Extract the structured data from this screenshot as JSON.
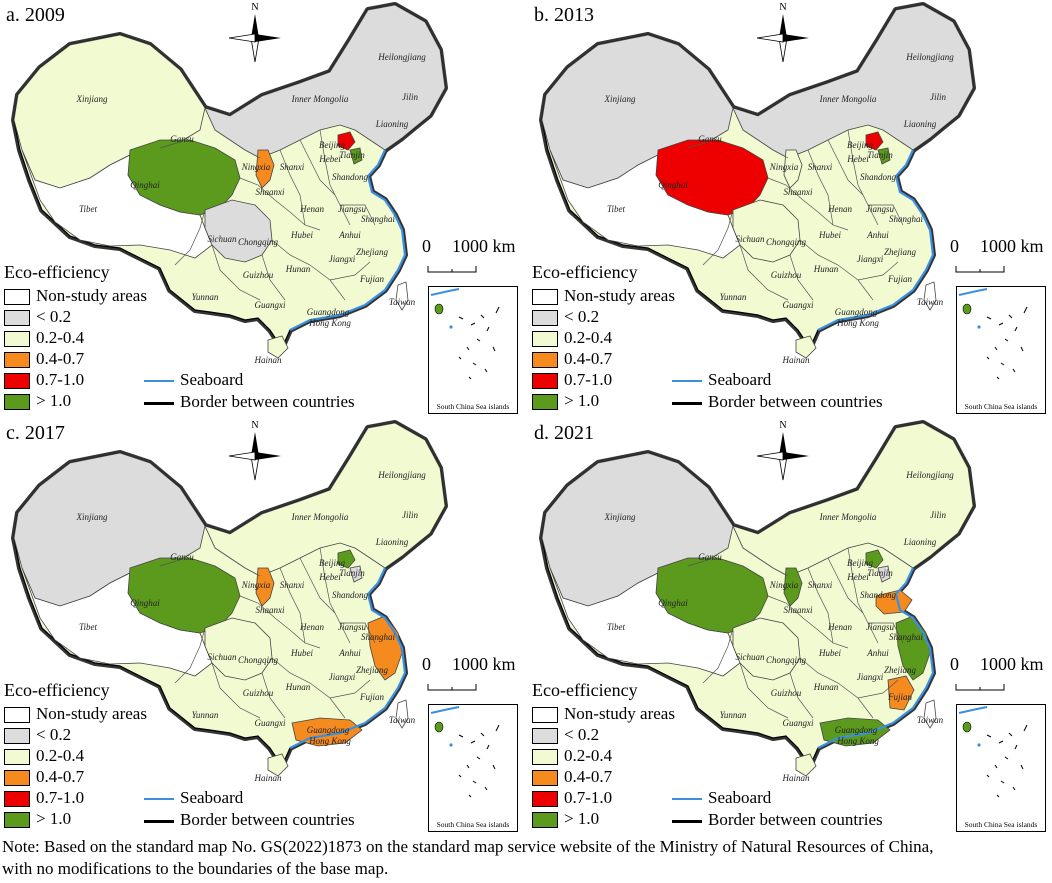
{
  "panels": [
    {
      "label": "a. 2009",
      "highlight": {
        "qinghai": "green",
        "ningxia": "orange",
        "beijing": "red",
        "tianjin": "green",
        "east_coast": "none",
        "guangdong": "none",
        "xinjiang": "light",
        "sichuan": "gray",
        "north": "gray"
      }
    },
    {
      "label": "b. 2013",
      "highlight": {
        "qinghai": "red",
        "ningxia": "light",
        "beijing": "red",
        "tianjin": "green",
        "east_coast": "none",
        "guangdong": "none",
        "xinjiang": "gray",
        "sichuan": "light",
        "north": "gray"
      }
    },
    {
      "label": "c. 2017",
      "highlight": {
        "qinghai": "green",
        "ningxia": "orange",
        "beijing": "green",
        "tianjin": "gray",
        "east_coast": "orange",
        "guangdong": "orange",
        "xinjiang": "gray",
        "sichuan": "light",
        "north": "light"
      }
    },
    {
      "label": "d. 2021",
      "highlight": {
        "qinghai": "green",
        "ningxia": "green",
        "beijing": "green",
        "tianjin": "gray",
        "east_coast": "green",
        "guangdong": "green",
        "xinjiang": "gray",
        "sichuan": "light",
        "north": "light"
      }
    }
  ],
  "colors": {
    "non_study": "#ffffff",
    "lt_0_2": "#dcdcdc",
    "r_0_2_0_4": "#f2fad2",
    "r_0_4_0_7": "#f58a1f",
    "r_0_7_1_0": "#ee0000",
    "gt_1_0": "#5c9a1e",
    "seaboard": "#3b8fe0",
    "border": "#000000"
  },
  "legend": {
    "title": "Eco-efficiency",
    "items": [
      "Non-study areas",
      "< 0.2",
      "0.2-0.4",
      "0.4-0.7",
      "0.7-1.0",
      "> 1.0"
    ],
    "seaboard": "Seaboard",
    "border": "Border between countries"
  },
  "scale": {
    "zero": "0",
    "distance": "1000 km"
  },
  "north": "N",
  "inset_caption": "South China Sea islands",
  "provinces": [
    "Heilongjiang",
    "Jilin",
    "Liaoning",
    "Inner Mongolia",
    "Xinjiang",
    "Gansu",
    "Qinghai",
    "Tibet",
    "Ningxia",
    "Shaanxi",
    "Shanxi",
    "Hebei",
    "Beijing",
    "Tianjin",
    "Shandong",
    "Henan",
    "Jiangsu",
    "Shanghai",
    "Anhui",
    "Hubei",
    "Sichuan",
    "Chongqing",
    "Zhejiang",
    "Jiangxi",
    "Hunan",
    "Guizhou",
    "Yunnan",
    "Guangxi",
    "Guangdong",
    "Hong Kong",
    "Fujian",
    "Taiwan",
    "Hainan"
  ],
  "note_line1": "Note: Based on the standard map No. GS(2022)1873 on the standard map service website of the Ministry of Natural Resources of China,",
  "note_line2": "with no modifications to the boundaries of the base map."
}
